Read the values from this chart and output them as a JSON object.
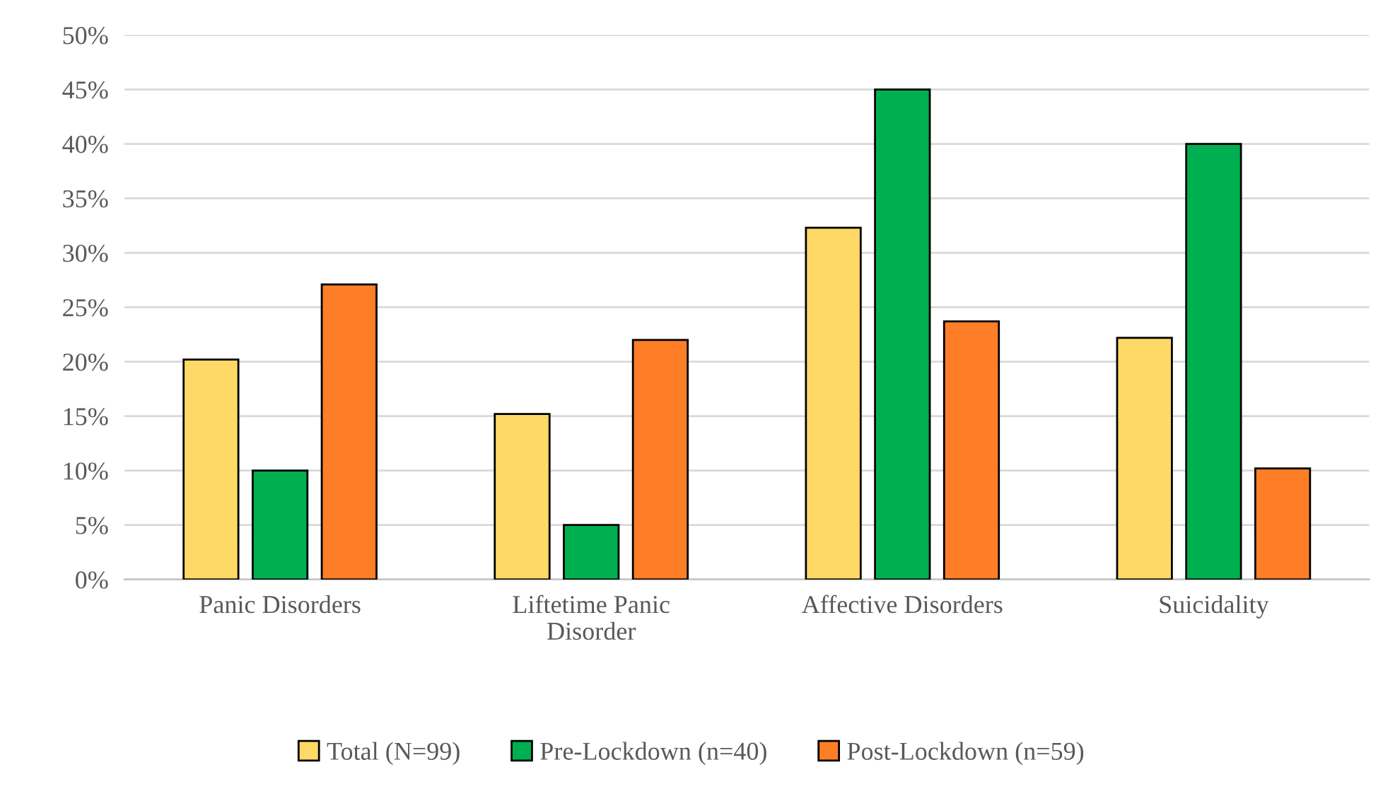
{
  "chart_data": {
    "type": "bar",
    "categories": [
      "Panic Disorders",
      "Liftetime Panic\nDisorder",
      "Affective Disorders",
      "Suicidality"
    ],
    "series": [
      {
        "name": "Total (N=99)",
        "color": "#ffd966",
        "values": [
          20.2,
          15.2,
          32.3,
          22.2
        ]
      },
      {
        "name": "Pre-Lockdown (n=40)",
        "color": "#00b050",
        "values": [
          10,
          5,
          45,
          40
        ]
      },
      {
        "name": "Post-Lockdown (n=59)",
        "color": "#fd7e27",
        "values": [
          27.1,
          22.0,
          23.7,
          10.2
        ]
      }
    ],
    "ylim": [
      0,
      50
    ],
    "yticks": [
      {
        "value": 0,
        "label": "0%"
      },
      {
        "value": 5,
        "label": "5%"
      },
      {
        "value": 10,
        "label": "10%"
      },
      {
        "value": 15,
        "label": "15%"
      },
      {
        "value": 20,
        "label": "20%"
      },
      {
        "value": 25,
        "label": "25%"
      },
      {
        "value": 30,
        "label": "30%"
      },
      {
        "value": 35,
        "label": "35%"
      },
      {
        "value": 40,
        "label": "40%"
      },
      {
        "value": 45,
        "label": "45%"
      },
      {
        "value": 50,
        "label": "50%"
      }
    ],
    "grid": "y",
    "legend": "bottom"
  }
}
